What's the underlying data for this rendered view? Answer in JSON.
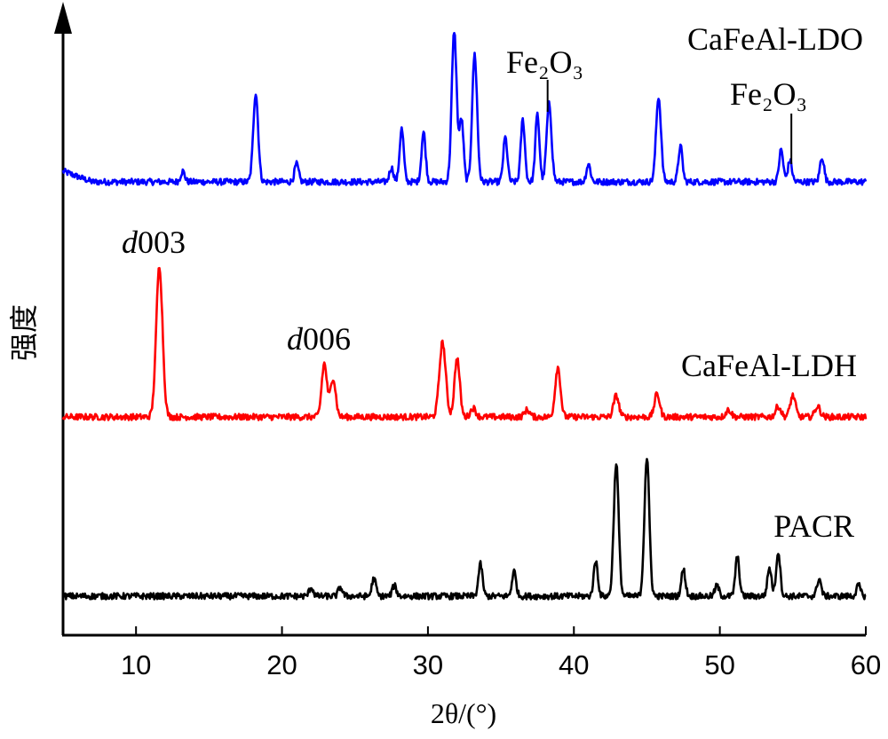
{
  "chart_data": {
    "type": "line",
    "xlabel": "2θ/(°)",
    "ylabel": "强度",
    "xlim": [
      5,
      60
    ],
    "x_ticks": [
      10,
      20,
      30,
      40,
      50,
      60
    ],
    "grid": false,
    "legend": "none (series labelled inline, top-right of each trace)",
    "series": [
      {
        "name": "CaFeAl-LDO",
        "color": "#0000ff",
        "baseline": 0.85,
        "peaks": [
          [
            13.2,
            0.06
          ],
          [
            18.2,
            0.5
          ],
          [
            21.0,
            0.1
          ],
          [
            27.5,
            0.08
          ],
          [
            28.2,
            0.3
          ],
          [
            29.7,
            0.28
          ],
          [
            31.8,
            0.85
          ],
          [
            32.3,
            0.35
          ],
          [
            33.2,
            0.72
          ],
          [
            35.3,
            0.25
          ],
          [
            36.5,
            0.35
          ],
          [
            37.5,
            0.38
          ],
          [
            38.3,
            0.44
          ],
          [
            41.0,
            0.1
          ],
          [
            45.8,
            0.48
          ],
          [
            47.3,
            0.2
          ],
          [
            54.2,
            0.18
          ],
          [
            54.8,
            0.12
          ],
          [
            57.0,
            0.14
          ]
        ]
      },
      {
        "name": "CaFeAl-LDH",
        "color": "#ff0000",
        "baseline": 0.85,
        "peaks": [
          [
            11.6,
            0.85
          ],
          [
            22.9,
            0.3
          ],
          [
            23.5,
            0.22
          ],
          [
            31.0,
            0.42
          ],
          [
            32.0,
            0.33
          ],
          [
            33.1,
            0.05
          ],
          [
            36.8,
            0.04
          ],
          [
            38.9,
            0.28
          ],
          [
            42.9,
            0.12
          ],
          [
            45.7,
            0.13
          ],
          [
            50.6,
            0.04
          ],
          [
            54.0,
            0.06
          ],
          [
            55.0,
            0.12
          ],
          [
            56.7,
            0.06
          ]
        ]
      },
      {
        "name": "PACR",
        "color": "#000000",
        "baseline": 0.85,
        "peaks": [
          [
            22.0,
            0.05
          ],
          [
            24.0,
            0.05
          ],
          [
            26.3,
            0.1
          ],
          [
            27.7,
            0.06
          ],
          [
            33.6,
            0.18
          ],
          [
            35.9,
            0.14
          ],
          [
            41.5,
            0.2
          ],
          [
            42.9,
            0.75
          ],
          [
            45.0,
            0.78
          ],
          [
            47.5,
            0.15
          ],
          [
            49.8,
            0.06
          ],
          [
            51.2,
            0.22
          ],
          [
            53.4,
            0.16
          ],
          [
            54.0,
            0.25
          ],
          [
            56.8,
            0.1
          ],
          [
            59.5,
            0.06
          ]
        ]
      }
    ],
    "annotations": [
      {
        "text_italic": "d",
        "text": "003",
        "x": 11.6,
        "series": "CaFeAl-LDH"
      },
      {
        "text_italic": "d",
        "text": "006",
        "x": 23.2,
        "series": "CaFeAl-LDH"
      },
      {
        "text": "Fe₂O₃",
        "x": 38.3,
        "series": "CaFeAl-LDO"
      },
      {
        "text": "Fe₂O₃",
        "x": 55.0,
        "series": "CaFeAl-LDO"
      }
    ]
  }
}
